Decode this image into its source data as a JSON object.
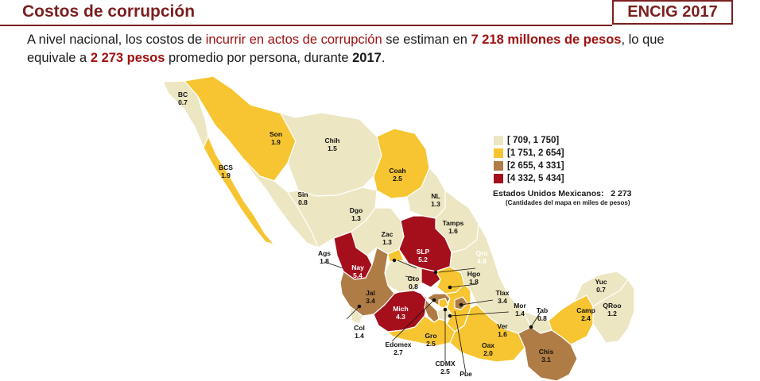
{
  "header": {
    "title": "Costos de corrupción",
    "badge": "ENCIG 2017"
  },
  "description": {
    "p1": "A nivel nacional, los costos de ",
    "p2": "incurrir en actos de corrupción",
    "p3": " se estiman en ",
    "p4": "7 218 millones de pesos",
    "p5": ", lo que",
    "p6": "equivale a ",
    "p7": "2 273 pesos",
    "p8": " promedio por persona, durante ",
    "p9": "2017",
    "p10": "."
  },
  "legend": {
    "items": [
      {
        "label": "[   709, 1 750]",
        "color": "#ece6c2"
      },
      {
        "label": "[1 751, 2 654]",
        "color": "#f7c531"
      },
      {
        "label": "[2 655, 4 331]",
        "color": "#b07c45"
      },
      {
        "label": "[4 332, 5 434]",
        "color": "#a50f1c"
      }
    ],
    "national_label": "Estados Unidos Mexicanos:",
    "national_value": "2 273",
    "note": "(Cantidades del mapa en miles de pesos)"
  },
  "states": [
    {
      "abbr": "BC",
      "value": "0.7",
      "class": 0
    },
    {
      "abbr": "Son",
      "value": "1.9",
      "class": 1
    },
    {
      "abbr": "Chih",
      "value": "1.5",
      "class": 0
    },
    {
      "abbr": "BCS",
      "value": "1.9",
      "class": 1
    },
    {
      "abbr": "Coah",
      "value": "2.5",
      "class": 1
    },
    {
      "abbr": "Sin",
      "value": "0.8",
      "class": 0
    },
    {
      "abbr": "NL",
      "value": "1.3",
      "class": 0
    },
    {
      "abbr": "Dgo",
      "value": "1.3",
      "class": 0
    },
    {
      "abbr": "Tamps",
      "value": "1.6",
      "class": 0
    },
    {
      "abbr": "Zac",
      "value": "1.3",
      "class": 0
    },
    {
      "abbr": "SLP",
      "value": "5.2",
      "class": 3
    },
    {
      "abbr": "Ags",
      "value": "1.8",
      "class": 1
    },
    {
      "abbr": "Nay",
      "value": "5.4",
      "class": 3
    },
    {
      "abbr": "Qro",
      "value": "4.8",
      "class": 3
    },
    {
      "abbr": "Gto",
      "value": "0.8",
      "class": 0
    },
    {
      "abbr": "Hgo",
      "value": "1.8",
      "class": 1
    },
    {
      "abbr": "Jal",
      "value": "3.4",
      "class": 2
    },
    {
      "abbr": "Mich",
      "value": "4.3",
      "class": 3
    },
    {
      "abbr": "Tlax",
      "value": "3.4",
      "class": 2
    },
    {
      "abbr": "Mor",
      "value": "1.4",
      "class": 0
    },
    {
      "abbr": "Tab",
      "value": "0.8",
      "class": 0
    },
    {
      "abbr": "Yuc",
      "value": "0.7",
      "class": 0
    },
    {
      "abbr": "Camp",
      "value": "2.4",
      "class": 1
    },
    {
      "abbr": "QRoo",
      "value": "1.2",
      "class": 0
    },
    {
      "abbr": "Col",
      "value": "1.4",
      "class": 0
    },
    {
      "abbr": "Gro",
      "value": "2.5",
      "class": 1
    },
    {
      "abbr": "Ver",
      "value": "1.6",
      "class": 0
    },
    {
      "abbr": "Oax",
      "value": "2.0",
      "class": 1
    },
    {
      "abbr": "Chis",
      "value": "3.1",
      "class": 2
    },
    {
      "abbr": "Edomex",
      "value": "2.7",
      "class": 2
    },
    {
      "abbr": "CDMX",
      "value": "2.5",
      "class": 1
    },
    {
      "abbr": "Pue",
      "value": "",
      "class": 1
    }
  ]
}
